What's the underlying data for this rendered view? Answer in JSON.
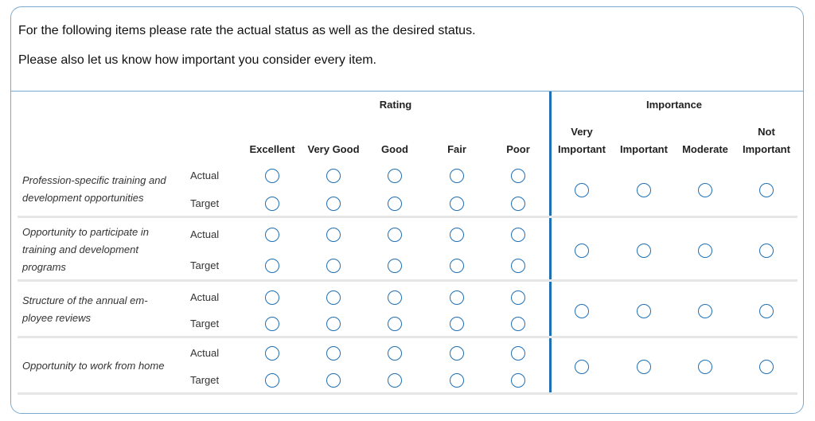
{
  "intro": {
    "line1": "For the following items please rate the actual status as well as the desired status.",
    "line2": "Please also let us know how important you consider every item."
  },
  "groups": {
    "rating": "Rating",
    "importance": "Importance"
  },
  "rating_columns": [
    "Excellent",
    "Very Good",
    "Good",
    "Fair",
    "Poor"
  ],
  "importance_columns": [
    [
      "Very",
      "Important"
    ],
    [
      "",
      "Important"
    ],
    [
      "",
      "Moderate"
    ],
    [
      "Not",
      "Important"
    ]
  ],
  "row_labels": {
    "actual": "Actual",
    "target": "Target"
  },
  "items": [
    {
      "lines": [
        "Profession-specific training and",
        "development opportunities"
      ]
    },
    {
      "lines": [
        "Opportunity to participate in",
        "training and development",
        "programs"
      ]
    },
    {
      "lines": [
        "Structure of the annual em-",
        "ployee reviews"
      ]
    },
    {
      "lines": [
        "Opportunity to work from home"
      ]
    }
  ]
}
